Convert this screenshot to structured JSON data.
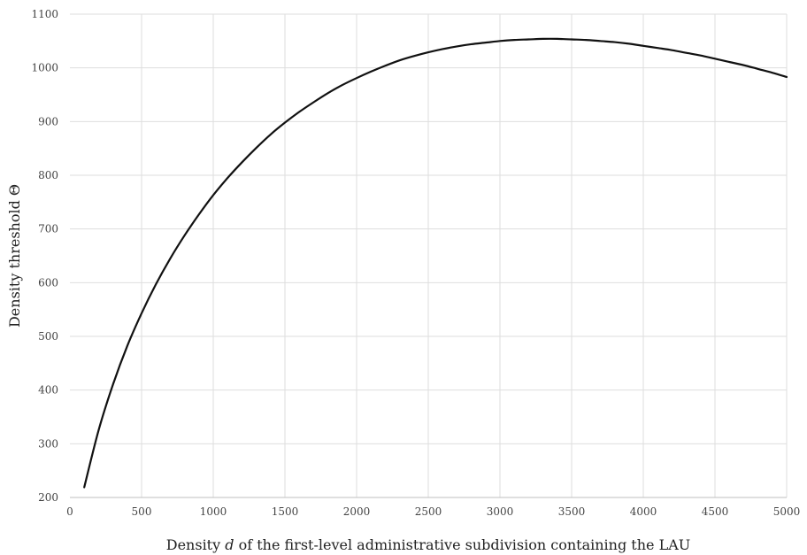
{
  "chart_data": {
    "type": "line",
    "title": "",
    "xlabel": "Density d of the first-level administrative subdivision containing the LAU",
    "xlabel_parts": {
      "before": "Density ",
      "italic": "d",
      "after": " of the first-level administrative subdivision containing the LAU"
    },
    "ylabel": "Density threshold Θ",
    "xlim": [
      0,
      5000
    ],
    "ylim": [
      200,
      1100
    ],
    "x_ticks": [
      0,
      500,
      1000,
      1500,
      2000,
      2500,
      3000,
      3500,
      4000,
      4500,
      5000
    ],
    "y_ticks": [
      200,
      300,
      400,
      500,
      600,
      700,
      800,
      900,
      1000,
      1100
    ],
    "grid": true,
    "legend": "none",
    "series": [
      {
        "color": "#111111",
        "x": [
          100,
          200,
          300,
          400,
          500,
          600,
          700,
          800,
          900,
          1000,
          1100,
          1200,
          1300,
          1400,
          1500,
          1600,
          1700,
          1800,
          1900,
          2000,
          2100,
          2200,
          2300,
          2400,
          2500,
          2600,
          2700,
          2800,
          2900,
          3000,
          3100,
          3200,
          3300,
          3400,
          3500,
          3600,
          3700,
          3800,
          3900,
          4000,
          4100,
          4200,
          4300,
          4400,
          4500,
          4600,
          4700,
          4800,
          4900,
          5000
        ],
        "y": [
          219,
          325,
          410,
          482,
          543,
          597,
          645,
          688,
          727,
          763,
          795,
          824,
          851,
          876,
          898,
          918,
          936,
          953,
          968,
          981,
          993,
          1004,
          1014,
          1022,
          1029,
          1035,
          1040,
          1044,
          1047,
          1050,
          1052,
          1053,
          1054,
          1054,
          1053,
          1052,
          1050,
          1048,
          1045,
          1041,
          1037,
          1033,
          1028,
          1023,
          1017,
          1011,
          1005,
          998,
          991,
          983
        ]
      }
    ]
  }
}
